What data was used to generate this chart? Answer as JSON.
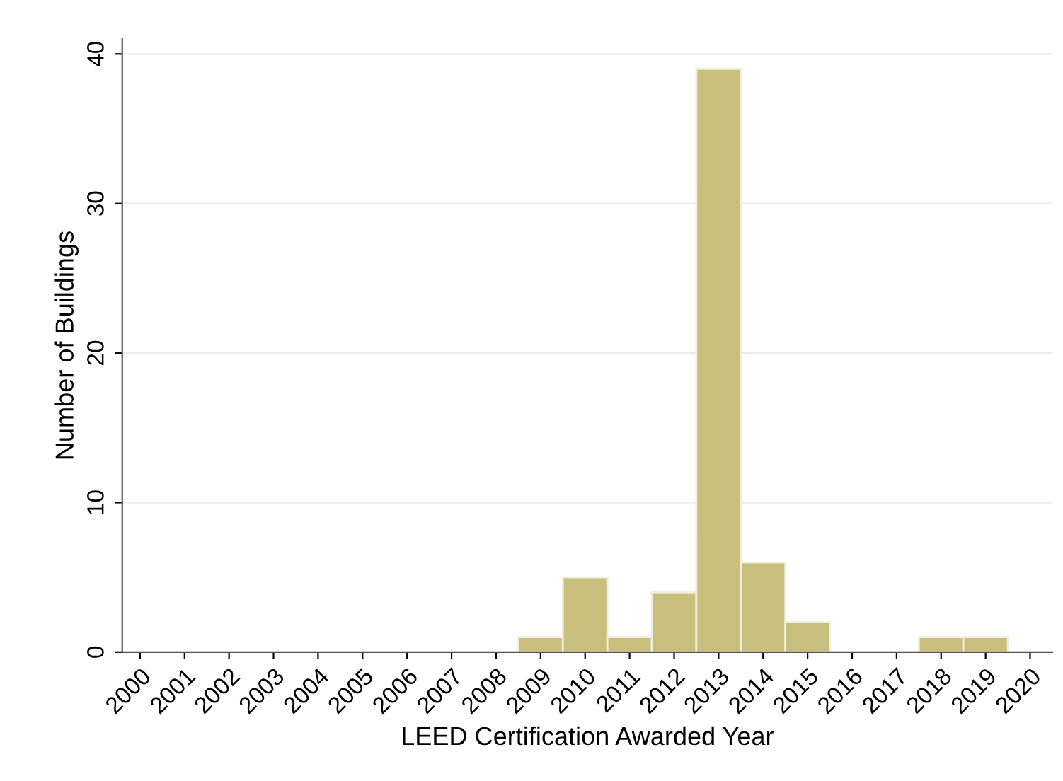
{
  "chart_data": {
    "type": "histogram",
    "xlabel": "LEED Certification Awarded Year",
    "ylabel": "Number of Buildings",
    "bins": [
      2008.5,
      2009.5,
      2010.5,
      2011.5,
      2012.5,
      2013.5,
      2014.5,
      2015.5,
      2016.5,
      2017.5,
      2018.5,
      2019.5
    ],
    "values": [
      1,
      5,
      1,
      4,
      39,
      6,
      2,
      0,
      0,
      1,
      1
    ],
    "color": "#c8bf7c",
    "xlim": [
      1999.6,
      2020.5
    ],
    "xticks": [
      2000,
      2001,
      2002,
      2003,
      2004,
      2005,
      2006,
      2007,
      2008,
      2009,
      2010,
      2011,
      2012,
      2013,
      2014,
      2015,
      2016,
      2017,
      2018,
      2019,
      2020
    ],
    "ylim": [
      0,
      41
    ],
    "yticks": [
      0,
      10,
      20,
      30,
      40
    ],
    "grid": "y"
  }
}
